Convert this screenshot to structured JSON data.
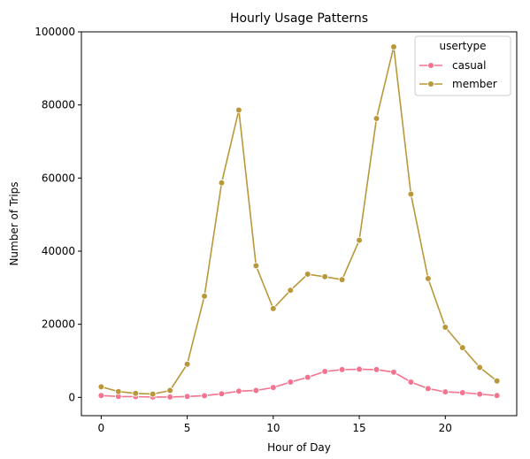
{
  "chart_data": {
    "type": "line",
    "title": "Hourly Usage Patterns",
    "xlabel": "Hour of Day",
    "ylabel": "Number of Trips",
    "xlim": [
      -1.15,
      24.15
    ],
    "ylim": [
      -5000,
      100000
    ],
    "xticks": [
      0,
      5,
      10,
      15,
      20
    ],
    "xtick_labels": [
      "0",
      "5",
      "10",
      "15",
      "20"
    ],
    "yticks": [
      0,
      20000,
      40000,
      60000,
      80000,
      100000
    ],
    "ytick_labels": [
      "0",
      "20000",
      "40000",
      "60000",
      "80000",
      "100000"
    ],
    "grid": false,
    "legend": {
      "title": "usertype",
      "placement": "top-right"
    },
    "x": [
      0,
      1,
      2,
      3,
      4,
      5,
      6,
      7,
      8,
      9,
      10,
      11,
      12,
      13,
      14,
      15,
      16,
      17,
      18,
      19,
      20,
      21,
      22,
      23
    ],
    "series": [
      {
        "name": "casual",
        "color": "#f4738e",
        "marker": "circle",
        "values": [
          500,
          250,
          200,
          100,
          100,
          250,
          450,
          1000,
          1700,
          1900,
          2700,
          4200,
          5500,
          7100,
          7600,
          7700,
          7600,
          6900,
          4200,
          2400,
          1500,
          1300,
          900,
          500
        ]
      },
      {
        "name": "member",
        "color": "#b9983a",
        "marker": "circle",
        "values": [
          2900,
          1600,
          1100,
          900,
          1900,
          9100,
          27700,
          58700,
          78600,
          36000,
          24300,
          29300,
          33700,
          33000,
          32200,
          43000,
          76300,
          95900,
          55600,
          32500,
          19200,
          13600,
          8200,
          4500
        ]
      }
    ]
  }
}
